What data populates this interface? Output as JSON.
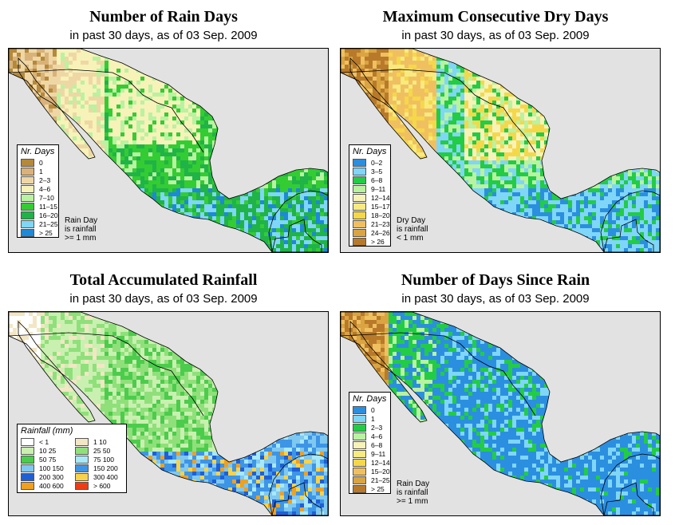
{
  "panels": [
    {
      "title": "Number of Rain Days",
      "subtitle_prefix": "in past 30 days, as of",
      "date": "03 Sep. 2009",
      "legend_title": "Nr. Days",
      "legend": [
        {
          "label": "0",
          "color": "#b5893a"
        },
        {
          "label": "1",
          "color": "#d9b27a"
        },
        {
          "label": "2–3",
          "color": "#efd7a5"
        },
        {
          "label": "4–6",
          "color": "#f7f2b8"
        },
        {
          "label": "7–10",
          "color": "#b9f2a0"
        },
        {
          "label": "11–15",
          "color": "#33cc33"
        },
        {
          "label": "16–20",
          "color": "#1fb348"
        },
        {
          "label": "21–25",
          "color": "#7fd6f7"
        },
        {
          "label": "> 25",
          "color": "#1e88d9"
        }
      ],
      "note": [
        "Rain Day",
        "is rainfall",
        ">= 1 mm"
      ]
    },
    {
      "title": "Maximum Consecutive Dry Days",
      "subtitle_prefix": "in past 30 days, as of",
      "date": "03 Sep. 2009",
      "legend_title": "Nr. Days",
      "legend": [
        {
          "label": "0–2",
          "color": "#2b8fe0"
        },
        {
          "label": "3–5",
          "color": "#7fd6f7"
        },
        {
          "label": "6–8",
          "color": "#22cc44"
        },
        {
          "label": "9–11",
          "color": "#b9f2a0"
        },
        {
          "label": "12–14",
          "color": "#f7f2b8"
        },
        {
          "label": "15–17",
          "color": "#f7ea80"
        },
        {
          "label": "18–20",
          "color": "#f5d84a"
        },
        {
          "label": "21–23",
          "color": "#f0c060"
        },
        {
          "label": "24–26",
          "color": "#d9a441"
        },
        {
          "label": "> 26",
          "color": "#b87a2a"
        }
      ],
      "note": [
        "Dry Day",
        "is rainfall",
        "< 1 mm"
      ]
    },
    {
      "title": "Total Accumulated Rainfall",
      "subtitle_prefix": "in past 30 days, as of",
      "date": "03 Sep. 2009",
      "legend_title": "Rainfall (mm)",
      "legend": [
        {
          "label": "< 1",
          "color": "#ffffff"
        },
        {
          "label": "1   10",
          "color": "#f3e6c4"
        },
        {
          "label": "10   25",
          "color": "#c9f0b0"
        },
        {
          "label": "25   50",
          "color": "#8fe07a"
        },
        {
          "label": "50   75",
          "color": "#4ccc4c"
        },
        {
          "label": "75   100",
          "color": "#a8e8f7"
        },
        {
          "label": "100   150",
          "color": "#7fc8f0"
        },
        {
          "label": "150   200",
          "color": "#3d95e6"
        },
        {
          "label": "200   300",
          "color": "#1f5fd6"
        },
        {
          "label": "300   400",
          "color": "#f7d24a"
        },
        {
          "label": "400   600",
          "color": "#f0a020"
        },
        {
          "label": "> 600",
          "color": "#f03c14"
        }
      ],
      "note": []
    },
    {
      "title": "Number of Days Since Rain",
      "subtitle_prefix": "in past 30 days, as of",
      "date": "03 Sep. 2009",
      "legend_title": "Nr. Days",
      "legend": [
        {
          "label": "0",
          "color": "#2b8fe0"
        },
        {
          "label": "1",
          "color": "#7fd6f7"
        },
        {
          "label": "2–3",
          "color": "#22cc44"
        },
        {
          "label": "4–6",
          "color": "#b9f2a0"
        },
        {
          "label": "6–8",
          "color": "#f7f2b8"
        },
        {
          "label": "9–11",
          "color": "#f7ea80"
        },
        {
          "label": "12–14",
          "color": "#f5d84a"
        },
        {
          "label": "15–20",
          "color": "#f0c060"
        },
        {
          "label": "21–25",
          "color": "#d9a441"
        },
        {
          "label": "> 25",
          "color": "#b87a2a"
        }
      ],
      "note": [
        "Rain Day",
        "is rainfall",
        ">= 1 mm"
      ]
    }
  ]
}
